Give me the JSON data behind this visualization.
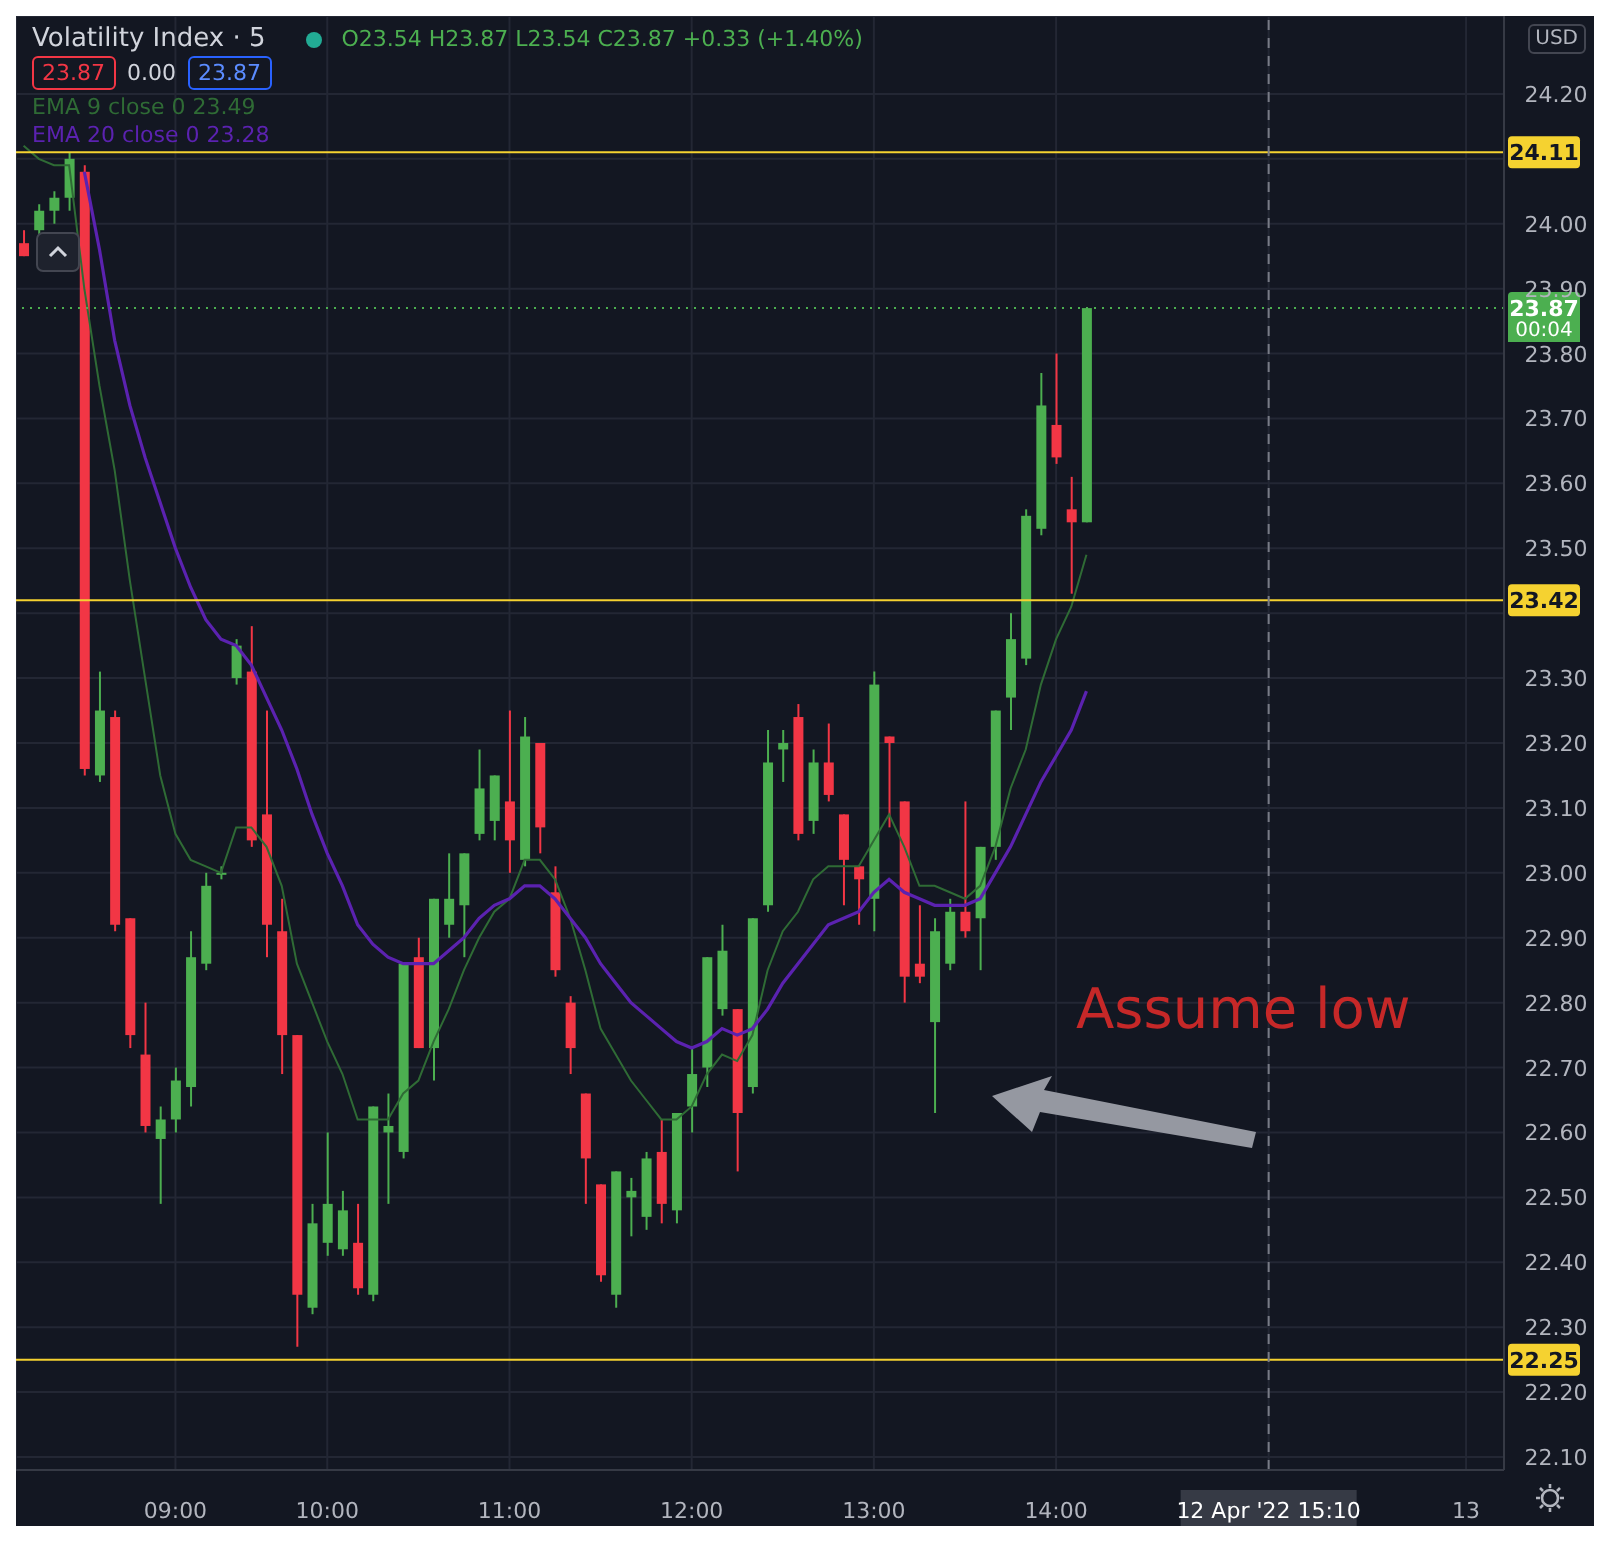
{
  "chart_data": {
    "type": "candlestick",
    "title": "Volatility Index · 5",
    "categories": [
      null,
      null,
      null,
      null,
      null,
      null,
      null,
      null,
      null,
      null,
      "09:00",
      null,
      null,
      null,
      null,
      null,
      null,
      null,
      null,
      null,
      "10:00",
      null,
      null,
      null,
      null,
      null,
      null,
      null,
      null,
      null,
      null,
      null,
      "11:00",
      null,
      null,
      null,
      null,
      null,
      null,
      null,
      null,
      null,
      null,
      null,
      "12:00",
      null,
      null,
      null,
      null,
      null,
      null,
      null,
      null,
      null,
      null,
      null,
      "13:00",
      null,
      null,
      null,
      null,
      null,
      null,
      null,
      null,
      null,
      null,
      null,
      "14:00",
      null,
      null,
      null,
      null,
      null,
      null,
      null,
      null,
      null,
      null,
      null,
      null,
      null,
      "12 Apr '22 15:10",
      null,
      null,
      null,
      null,
      null,
      null,
      null,
      null,
      null,
      null,
      null,
      null,
      "13",
      null,
      null
    ],
    "ohlc": [
      [
        23.97,
        23.99,
        23.95,
        23.95
      ],
      [
        23.99,
        24.03,
        23.98,
        24.02
      ],
      [
        24.02,
        24.05,
        24.0,
        24.04
      ],
      [
        24.04,
        24.11,
        24.02,
        24.1
      ],
      [
        24.08,
        24.09,
        23.15,
        23.16
      ],
      [
        23.15,
        23.31,
        23.14,
        23.25
      ],
      [
        23.24,
        23.25,
        22.91,
        22.92
      ],
      [
        22.93,
        22.93,
        22.73,
        22.75
      ],
      [
        22.72,
        22.8,
        22.6,
        22.61
      ],
      [
        22.59,
        22.64,
        22.49,
        22.62
      ],
      [
        22.62,
        22.7,
        22.6,
        22.68
      ],
      [
        22.67,
        22.91,
        22.64,
        22.87
      ],
      [
        22.86,
        23.0,
        22.85,
        22.98
      ],
      [
        23.0,
        23.01,
        22.99,
        23.0
      ],
      [
        23.3,
        23.36,
        23.29,
        23.35
      ],
      [
        23.31,
        23.38,
        23.04,
        23.05
      ],
      [
        23.09,
        23.25,
        22.87,
        22.92
      ],
      [
        22.91,
        22.96,
        22.69,
        22.75
      ],
      [
        22.75,
        22.75,
        22.27,
        22.35
      ],
      [
        22.33,
        22.49,
        22.32,
        22.46
      ],
      [
        22.43,
        22.6,
        22.41,
        22.49
      ],
      [
        22.42,
        22.51,
        22.41,
        22.48
      ],
      [
        22.43,
        22.49,
        22.35,
        22.36
      ],
      [
        22.35,
        22.64,
        22.34,
        22.64
      ],
      [
        22.6,
        22.66,
        22.49,
        22.61
      ],
      [
        22.57,
        22.86,
        22.56,
        22.86
      ],
      [
        22.87,
        22.9,
        22.73,
        22.73
      ],
      [
        22.73,
        22.96,
        22.68,
        22.96
      ],
      [
        22.92,
        23.03,
        22.9,
        22.96
      ],
      [
        22.95,
        23.03,
        22.87,
        23.03
      ],
      [
        23.06,
        23.19,
        23.05,
        23.13
      ],
      [
        23.08,
        23.15,
        23.05,
        23.15
      ],
      [
        23.11,
        23.25,
        23.0,
        23.05
      ],
      [
        23.02,
        23.24,
        23.01,
        23.21
      ],
      [
        23.2,
        23.2,
        23.03,
        23.07
      ],
      [
        22.97,
        23.01,
        22.84,
        22.85
      ],
      [
        22.8,
        22.81,
        22.69,
        22.73
      ],
      [
        22.66,
        22.66,
        22.49,
        22.56
      ],
      [
        22.52,
        22.52,
        22.37,
        22.38
      ],
      [
        22.35,
        22.54,
        22.33,
        22.54
      ],
      [
        22.5,
        22.53,
        22.44,
        22.51
      ],
      [
        22.47,
        22.57,
        22.45,
        22.56
      ],
      [
        22.57,
        22.62,
        22.46,
        22.49
      ],
      [
        22.48,
        22.63,
        22.46,
        22.63
      ],
      [
        22.64,
        22.73,
        22.6,
        22.69
      ],
      [
        22.7,
        22.87,
        22.67,
        22.87
      ],
      [
        22.79,
        22.92,
        22.78,
        22.88
      ],
      [
        22.79,
        22.79,
        22.54,
        22.63
      ],
      [
        22.67,
        22.93,
        22.66,
        22.93
      ],
      [
        22.95,
        23.22,
        22.94,
        23.17
      ],
      [
        23.19,
        23.22,
        23.14,
        23.2
      ],
      [
        23.24,
        23.26,
        23.05,
        23.06
      ],
      [
        23.08,
        23.19,
        23.06,
        23.17
      ],
      [
        23.17,
        23.23,
        23.11,
        23.12
      ],
      [
        23.09,
        23.09,
        22.95,
        23.02
      ],
      [
        23.01,
        23.01,
        22.92,
        22.99
      ],
      [
        22.96,
        23.31,
        22.91,
        23.29
      ],
      [
        23.21,
        23.21,
        23.07,
        23.2
      ],
      [
        23.11,
        23.11,
        22.8,
        22.84
      ],
      [
        22.86,
        22.95,
        22.83,
        22.84
      ],
      [
        22.77,
        22.93,
        22.63,
        22.91
      ],
      [
        22.86,
        22.96,
        22.85,
        22.94
      ],
      [
        22.94,
        23.11,
        22.9,
        22.91
      ],
      [
        22.93,
        23.04,
        22.85,
        23.04
      ],
      [
        23.04,
        23.25,
        23.02,
        23.25
      ],
      [
        23.27,
        23.4,
        23.22,
        23.36
      ],
      [
        23.33,
        23.56,
        23.32,
        23.55
      ],
      [
        23.53,
        23.77,
        23.52,
        23.72
      ],
      [
        23.69,
        23.8,
        23.63,
        23.64
      ],
      [
        23.56,
        23.61,
        23.43,
        23.54
      ],
      [
        23.54,
        23.87,
        23.54,
        23.87
      ],
      null,
      null,
      null,
      null,
      null,
      null,
      null,
      null,
      null,
      null,
      null,
      null,
      null,
      null,
      null,
      null,
      null,
      null,
      null,
      null,
      null,
      null,
      null,
      null,
      null,
      null,
      null
    ],
    "colors": [
      "#f23645",
      "#4caf50",
      "#4caf50",
      "#4caf50",
      "#f23645",
      "#4caf50",
      "#f23645",
      "#f23645",
      "#f23645",
      "#4caf50",
      "#4caf50",
      "#4caf50",
      "#4caf50",
      "#4caf50",
      "#4caf50",
      "#f23645",
      "#f23645",
      "#f23645",
      "#f23645",
      "#4caf50",
      "#4caf50",
      "#4caf50",
      "#f23645",
      "#4caf50",
      "#4caf50",
      "#4caf50",
      "#f23645",
      "#4caf50",
      "#4caf50",
      "#4caf50",
      "#4caf50",
      "#4caf50",
      "#f23645",
      "#4caf50",
      "#f23645",
      "#f23645",
      "#f23645",
      "#f23645",
      "#f23645",
      "#4caf50",
      "#4caf50",
      "#4caf50",
      "#f23645",
      "#4caf50",
      "#4caf50",
      "#4caf50",
      "#4caf50",
      "#f23645",
      "#4caf50",
      "#4caf50",
      "#4caf50",
      "#f23645",
      "#4caf50",
      "#f23645",
      "#f23645",
      "#f23645",
      "#4caf50",
      "#f23645",
      "#f23645",
      "#f23645",
      "#4caf50",
      "#4caf50",
      "#f23645",
      "#4caf50",
      "#4caf50",
      "#4caf50",
      "#4caf50",
      "#4caf50",
      "#f23645",
      "#f23645",
      "#4caf50",
      null,
      null,
      null,
      null,
      null,
      null,
      null,
      null,
      null,
      null,
      null,
      null,
      null,
      null,
      null,
      null,
      null,
      null,
      null,
      null,
      null,
      null,
      null,
      null,
      null,
      null,
      null
    ],
    "series": [
      {
        "type": "line",
        "name": "EMA 9 close 0",
        "color": "#2f6b35",
        "values": [
          24.12,
          24.1,
          24.09,
          24.09,
          23.9,
          23.75,
          23.62,
          23.45,
          23.3,
          23.15,
          23.06,
          23.02,
          23.01,
          23.0,
          23.07,
          23.07,
          23.04,
          22.98,
          22.86,
          22.8,
          22.74,
          22.69,
          22.62,
          22.62,
          22.62,
          22.66,
          22.68,
          22.74,
          22.79,
          22.85,
          22.9,
          22.94,
          22.96,
          23.02,
          23.02,
          22.99,
          22.93,
          22.85,
          22.76,
          22.72,
          22.68,
          22.65,
          22.62,
          22.62,
          22.64,
          22.69,
          22.72,
          22.71,
          22.75,
          22.85,
          22.91,
          22.94,
          22.99,
          23.01,
          23.01,
          23.01,
          23.05,
          23.09,
          23.04,
          22.98,
          22.98,
          22.97,
          22.96,
          22.98,
          23.04,
          23.13,
          23.19,
          23.29,
          23.36,
          23.41,
          23.49,
          null,
          null,
          null,
          null,
          null,
          null,
          null,
          null,
          null,
          null,
          null,
          null,
          null,
          null,
          null,
          null,
          null,
          null,
          null,
          null,
          null,
          null,
          null,
          null,
          null,
          null,
          null
        ]
      },
      {
        "type": "line",
        "name": "EMA 20 close 0",
        "color": "#5b22b0",
        "values": [
          null,
          null,
          null,
          null,
          24.08,
          23.96,
          23.82,
          23.72,
          23.64,
          23.57,
          23.5,
          23.44,
          23.39,
          23.36,
          23.35,
          23.32,
          23.27,
          23.22,
          23.16,
          23.09,
          23.03,
          22.98,
          22.92,
          22.89,
          22.87,
          22.86,
          22.86,
          22.86,
          22.88,
          22.9,
          22.93,
          22.95,
          22.96,
          22.98,
          22.98,
          22.96,
          22.93,
          22.9,
          22.86,
          22.83,
          22.8,
          22.78,
          22.76,
          22.74,
          22.73,
          22.74,
          22.76,
          22.75,
          22.76,
          22.79,
          22.83,
          22.86,
          22.89,
          22.92,
          22.93,
          22.94,
          22.97,
          22.99,
          22.97,
          22.96,
          22.95,
          22.95,
          22.95,
          22.96,
          23.0,
          23.04,
          23.09,
          23.14,
          23.18,
          23.22,
          23.28,
          null,
          null,
          null,
          null,
          null,
          null,
          null,
          null,
          null,
          null,
          null,
          null,
          null,
          null,
          null,
          null,
          null,
          null,
          null,
          null,
          null,
          null,
          null,
          null,
          null,
          null,
          null
        ]
      }
    ],
    "ylim": [
      22.08,
      24.32
    ],
    "yticks": [
      {
        "value": 22.1,
        "label": "22.10"
      },
      {
        "value": 22.2,
        "label": "22.20"
      },
      {
        "value": 22.3,
        "label": "22.30"
      },
      {
        "value": 22.4,
        "label": "22.40"
      },
      {
        "value": 22.5,
        "label": "22.50"
      },
      {
        "value": 22.6,
        "label": "22.60"
      },
      {
        "value": 22.7,
        "label": "22.70"
      },
      {
        "value": 22.8,
        "label": "22.80"
      },
      {
        "value": 22.9,
        "label": "22.90"
      },
      {
        "value": 23.0,
        "label": "23.00"
      },
      {
        "value": 23.1,
        "label": "23.10"
      },
      {
        "value": 23.2,
        "label": "23.20"
      },
      {
        "value": 23.3,
        "label": "23.30"
      },
      {
        "value": 23.4,
        "label": null
      },
      {
        "value": 23.5,
        "label": "23.50"
      },
      {
        "value": 23.6,
        "label": "23.60"
      },
      {
        "value": 23.7,
        "label": "23.70"
      },
      {
        "value": 23.8,
        "label": "23.80"
      },
      {
        "value": 23.9,
        "label": "23.90"
      },
      {
        "value": 24.0,
        "label": "24.00"
      },
      {
        "value": 24.1,
        "label": null
      },
      {
        "value": 24.2,
        "label": "24.20"
      }
    ],
    "ref_lines": [
      {
        "axis": "y",
        "value": 24.11,
        "label": "24.11",
        "color": "#f5d230",
        "line_style": "solid"
      },
      {
        "axis": "y",
        "value": 23.42,
        "label": "23.42",
        "color": "#f5d230",
        "line_style": "solid"
      },
      {
        "axis": "y",
        "value": 22.25,
        "label": "22.25",
        "color": "#f5d230",
        "line_style": "solid"
      },
      {
        "axis": "y",
        "value": 23.87,
        "label": "23.87",
        "color": "#4caf50",
        "line_style": "dotted"
      },
      {
        "axis": "x",
        "value": "12 Apr '22 15:10",
        "color": "#787b86",
        "line_style": "dashed"
      }
    ],
    "annotations": [
      "O23.54 H23.87 L23.54 C23.87 +0.33 (+1.40%)",
      "23.87",
      "0.00",
      "23.87",
      "USD",
      "00:04",
      "Assume low",
      "23.49",
      "23.28"
    ],
    "grid": true,
    "legend": "top left"
  }
}
